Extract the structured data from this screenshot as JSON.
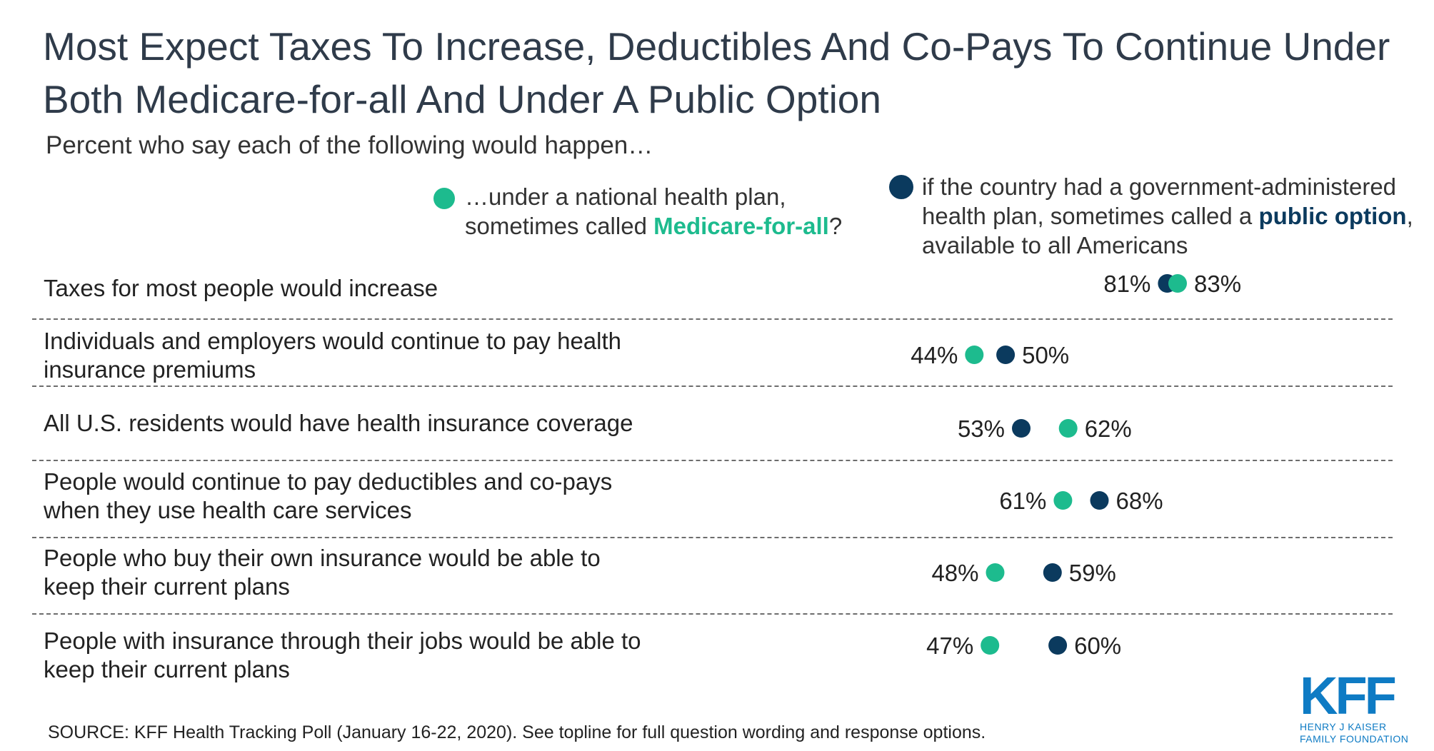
{
  "title": "Most Expect Taxes To Increase, Deductibles And Co-Pays To Continue Under Both Medicare-for-all And Under A Public Option",
  "subtitle": "Percent who say each of the following would happen…",
  "legend": {
    "m4a": {
      "text_before": "…under a national health plan, sometimes called ",
      "emphasis": "Medicare-for-all",
      "text_after": "?",
      "color": "#1dbb8e"
    },
    "po": {
      "text_before": "if the country had a government-administered health plan, sometimes called a ",
      "emphasis": "public option",
      "text_after": ", available to all Americans",
      "color": "#0b3a5e"
    }
  },
  "chart_data": {
    "type": "scatter",
    "subtype": "dot-plot",
    "categories": [
      "Taxes for most people would increase",
      "Individuals and employers would continue to pay health insurance premiums",
      "All U.S. residents would have health insurance coverage",
      "People would continue to pay deductibles and co-pays when they use health care services",
      "People who buy their own insurance would be able to keep their current plans",
      "People with insurance through their jobs would be able to keep their current plans"
    ],
    "series": [
      {
        "name": "Medicare-for-all",
        "color": "#1dbb8e",
        "values": [
          83,
          44,
          62,
          61,
          48,
          47
        ]
      },
      {
        "name": "public option",
        "color": "#0b3a5e",
        "values": [
          81,
          50,
          53,
          68,
          59,
          60
        ]
      }
    ],
    "value_suffix": "%",
    "grid": false
  },
  "source": "SOURCE: KFF Health Tracking Poll (January 16-22, 2020). See topline for full question wording and response options.",
  "logo": {
    "letters": "KFF",
    "line1": "HENRY J KAISER",
    "line2": "FAMILY FOUNDATION",
    "color": "#0e7bc4"
  }
}
